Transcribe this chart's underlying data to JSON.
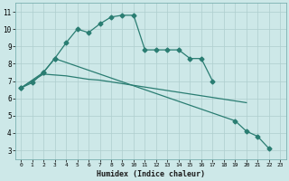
{
  "xlabel": "Humidex (Indice chaleur)",
  "bg_color": "#cde8e8",
  "grid_color": "#aecece",
  "line_color": "#2a7d72",
  "x_ticks": [
    0,
    1,
    2,
    3,
    4,
    5,
    6,
    7,
    8,
    9,
    10,
    11,
    12,
    13,
    14,
    15,
    16,
    17,
    18,
    19,
    20,
    21,
    22,
    23
  ],
  "y_ticks": [
    3,
    4,
    5,
    6,
    7,
    8,
    9,
    10,
    11
  ],
  "xlim": [
    -0.5,
    23.5
  ],
  "ylim": [
    2.5,
    11.5
  ],
  "series1_x": [
    0,
    1,
    2,
    3,
    4,
    5,
    6,
    7,
    8,
    9,
    10,
    11,
    12,
    13,
    14,
    15,
    16,
    17
  ],
  "series1_y": [
    6.6,
    6.9,
    7.5,
    8.3,
    9.2,
    10.0,
    9.8,
    10.3,
    10.7,
    10.8,
    10.8,
    8.8,
    8.8,
    8.8,
    8.8,
    8.3,
    8.3,
    7.0
  ],
  "series2_x": [
    0,
    2,
    3,
    19,
    20,
    21,
    22
  ],
  "series2_y": [
    6.6,
    7.5,
    8.3,
    4.7,
    4.1,
    3.8,
    3.1
  ],
  "series3_x": [
    0,
    2,
    3,
    4,
    5,
    6,
    7,
    8,
    9,
    10,
    11,
    12,
    13,
    14,
    15,
    16,
    17,
    18,
    19,
    20
  ],
  "series3_y": [
    6.6,
    7.4,
    7.35,
    7.3,
    7.2,
    7.1,
    7.05,
    6.95,
    6.85,
    6.75,
    6.65,
    6.55,
    6.45,
    6.35,
    6.25,
    6.15,
    6.05,
    5.95,
    5.85,
    5.75
  ]
}
